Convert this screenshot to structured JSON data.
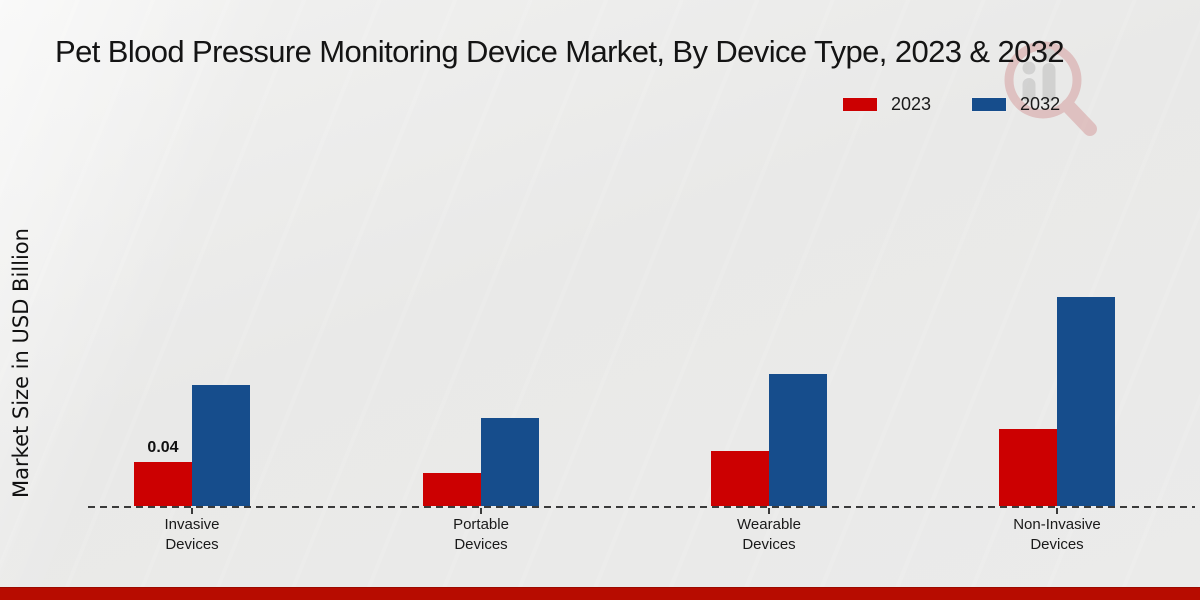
{
  "watermark": {
    "name": "magnifier-bar-chart-logo"
  },
  "footer": {
    "stripe_color": "#b70c00"
  },
  "chart_data": {
    "type": "bar",
    "title": "Pet Blood Pressure Monitoring Device Market, By Device Type, 2023 & 2032",
    "ylabel": "Market Size in USD Billion",
    "xlabel": "",
    "categories": [
      "Invasive Devices",
      "Portable Devices",
      "Wearable Devices",
      "Non-Invasive Devices"
    ],
    "series": [
      {
        "name": "2023",
        "color": "#cc0001",
        "values": [
          0.04,
          0.03,
          0.05,
          0.07
        ]
      },
      {
        "name": "2032",
        "color": "#164d8c",
        "values": [
          0.11,
          0.08,
          0.12,
          0.19
        ]
      }
    ],
    "point_labels": [
      [
        "0.04",
        "",
        "",
        ""
      ],
      [
        "",
        "",
        "",
        ""
      ]
    ],
    "ylim": [
      0,
      0.2
    ],
    "grid": false,
    "legend_position": "top-right",
    "baseline_style": "dashed"
  }
}
